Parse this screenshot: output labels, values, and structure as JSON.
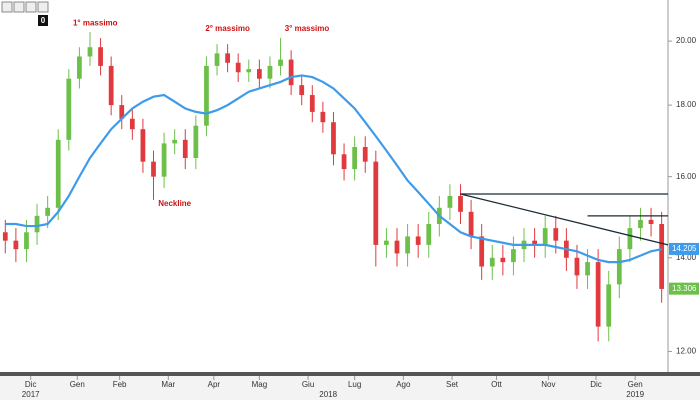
{
  "chart_data": {
    "type": "candlestick",
    "badge": "0",
    "open": [
      14.6,
      14.4,
      14.2,
      14.6,
      15.0,
      15.2,
      17.0,
      18.8,
      19.5,
      19.8,
      19.2,
      18.0,
      17.6,
      17.3,
      16.4,
      16.0,
      16.9,
      17.0,
      16.5,
      17.4,
      19.2,
      19.6,
      19.3,
      19.0,
      19.1,
      18.8,
      19.2,
      19.4,
      18.6,
      18.3,
      17.8,
      17.5,
      16.6,
      16.2,
      16.8,
      16.4,
      14.3,
      14.4,
      14.1,
      14.5,
      14.3,
      14.8,
      15.2,
      15.5,
      15.1,
      14.5,
      13.8,
      14.0,
      13.9,
      14.2,
      14.4,
      14.3,
      14.7,
      14.4,
      14.0,
      13.6,
      13.9,
      12.5,
      13.4,
      14.2,
      14.7,
      14.9,
      14.8
    ],
    "high": [
      14.9,
      14.7,
      14.9,
      15.3,
      15.5,
      17.3,
      19.1,
      19.8,
      20.3,
      20.1,
      19.5,
      18.3,
      17.9,
      17.6,
      16.7,
      17.2,
      17.3,
      17.3,
      17.7,
      19.5,
      19.9,
      19.9,
      19.6,
      19.4,
      19.4,
      19.5,
      20.1,
      19.7,
      18.9,
      18.6,
      18.1,
      17.8,
      16.9,
      17.1,
      17.1,
      16.7,
      14.7,
      14.7,
      14.8,
      14.8,
      15.1,
      15.5,
      15.8,
      15.8,
      15.4,
      14.8,
      14.3,
      14.3,
      14.5,
      14.7,
      14.7,
      15.0,
      15.0,
      14.7,
      14.3,
      14.2,
      14.2,
      13.7,
      14.5,
      15.0,
      15.2,
      15.2,
      15.1
    ],
    "low": [
      14.1,
      13.9,
      13.9,
      14.3,
      14.7,
      14.9,
      16.7,
      18.5,
      19.2,
      18.9,
      17.7,
      17.3,
      17.0,
      16.1,
      15.4,
      15.7,
      16.6,
      16.2,
      16.2,
      17.1,
      18.9,
      19.0,
      18.7,
      18.7,
      18.5,
      18.5,
      18.9,
      18.3,
      18.0,
      17.5,
      17.2,
      16.3,
      15.9,
      15.9,
      16.1,
      13.8,
      14.0,
      13.8,
      13.8,
      14.0,
      14.0,
      14.5,
      14.9,
      14.8,
      14.2,
      13.5,
      13.5,
      13.6,
      13.6,
      13.9,
      14.0,
      14.0,
      14.1,
      13.7,
      13.3,
      13.3,
      12.2,
      12.2,
      13.1,
      13.9,
      14.4,
      14.5,
      13.0
    ],
    "close": [
      14.4,
      14.2,
      14.6,
      15.0,
      15.2,
      17.0,
      18.8,
      19.5,
      19.8,
      19.2,
      18.0,
      17.6,
      17.3,
      16.4,
      16.0,
      16.9,
      17.0,
      16.5,
      17.4,
      19.2,
      19.6,
      19.3,
      19.0,
      19.1,
      18.8,
      19.2,
      19.4,
      18.6,
      18.3,
      17.8,
      17.5,
      16.6,
      16.2,
      16.8,
      16.4,
      14.3,
      14.4,
      14.1,
      14.5,
      14.3,
      14.8,
      15.2,
      15.5,
      15.1,
      14.5,
      13.8,
      14.0,
      13.9,
      14.2,
      14.4,
      14.3,
      14.7,
      14.4,
      14.0,
      13.6,
      13.9,
      12.5,
      13.4,
      14.2,
      14.7,
      14.9,
      14.8,
      13.3
    ],
    "moving_average": {
      "color": "#3d9be9",
      "values": [
        14.8,
        14.8,
        14.75,
        14.75,
        14.8,
        15.1,
        15.5,
        16.0,
        16.5,
        16.9,
        17.3,
        17.6,
        17.9,
        18.1,
        18.25,
        18.3,
        18.1,
        17.9,
        17.8,
        17.75,
        17.85,
        18.0,
        18.2,
        18.4,
        18.5,
        18.6,
        18.7,
        18.85,
        18.9,
        18.85,
        18.7,
        18.5,
        18.2,
        17.9,
        17.5,
        17.1,
        16.7,
        16.3,
        15.9,
        15.6,
        15.3,
        15.0,
        14.8,
        14.6,
        14.5,
        14.45,
        14.4,
        14.35,
        14.3,
        14.3,
        14.3,
        14.3,
        14.25,
        14.2,
        14.15,
        14.05,
        13.95,
        13.9,
        13.9,
        13.95,
        14.05,
        14.15,
        14.2
      ]
    },
    "up_color": "#6cc04a",
    "down_color": "#e0393e",
    "log_scale": true,
    "xlim": [
      -0.5,
      62.6
    ],
    "ylim": [
      11.6,
      21.4
    ],
    "yticks": [
      {
        "value": 12,
        "label": "12.00"
      },
      {
        "value": 14,
        "label": "14.00"
      },
      {
        "value": 16,
        "label": "16.00"
      },
      {
        "value": 18,
        "label": "18.00"
      },
      {
        "value": 20,
        "label": "20.00"
      }
    ],
    "xticks": [
      {
        "value": 2.4,
        "label": "Dic"
      },
      {
        "value": 6.8,
        "label": "Gen"
      },
      {
        "value": 10.8,
        "label": "Feb"
      },
      {
        "value": 15.4,
        "label": "Mar"
      },
      {
        "value": 19.7,
        "label": "Apr"
      },
      {
        "value": 24,
        "label": "Mag"
      },
      {
        "value": 28.6,
        "label": "Giu"
      },
      {
        "value": 33,
        "label": "Lug"
      },
      {
        "value": 37.6,
        "label": "Ago"
      },
      {
        "value": 42.2,
        "label": "Set"
      },
      {
        "value": 46.4,
        "label": "Ott"
      },
      {
        "value": 51.3,
        "label": "Nov"
      },
      {
        "value": 55.8,
        "label": "Dic"
      },
      {
        "value": 59.5,
        "label": "Gen"
      }
    ],
    "years": [
      {
        "value": 2.4,
        "label": "2017"
      },
      {
        "value": 30.5,
        "label": "2018"
      },
      {
        "value": 59.5,
        "label": "2019"
      }
    ],
    "price_labels": [
      {
        "value": 14.205,
        "label": "14.205",
        "color": "#3d9be9"
      },
      {
        "value": 13.306,
        "label": "13.306",
        "color": "#6cc04a"
      }
    ],
    "trendlines": [
      {
        "x": [
          43,
          62.6
        ],
        "y": [
          15.55,
          15.55
        ]
      },
      {
        "x": [
          55,
          62.6
        ],
        "y": [
          15.0,
          15.0
        ]
      },
      {
        "x": [
          43,
          62.6
        ],
        "y": [
          15.55,
          14.3
        ]
      }
    ],
    "annotations": [
      {
        "text": "1° massimo",
        "x": 8.5,
        "y": 20.6
      },
      {
        "text": "2° massimo",
        "x": 21,
        "y": 20.4
      },
      {
        "text": "3° massimo",
        "x": 28.5,
        "y": 20.4
      },
      {
        "text": "Neckline",
        "x": 16,
        "y": 15.3
      }
    ]
  }
}
